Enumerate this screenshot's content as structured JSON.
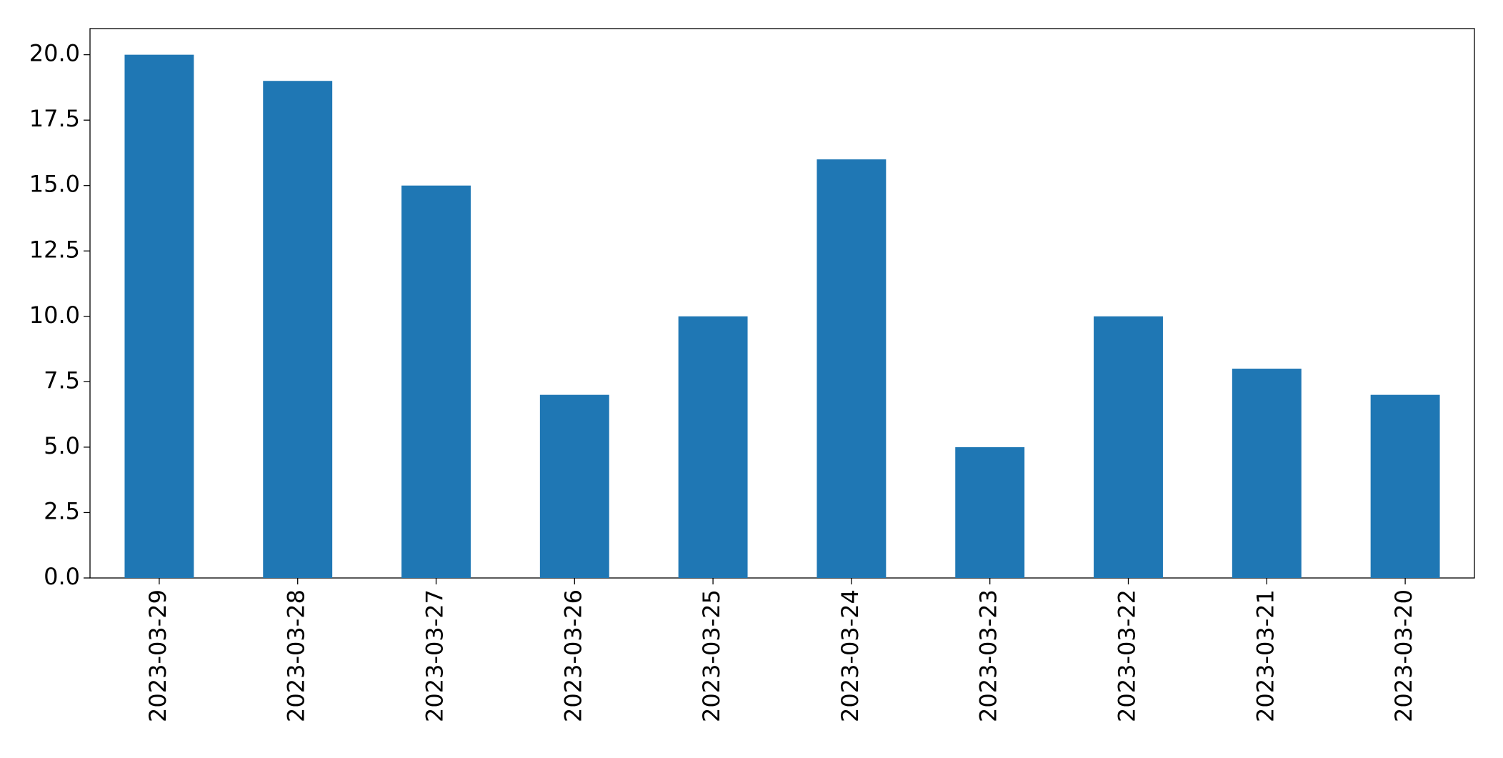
{
  "chart_data": {
    "type": "bar",
    "categories": [
      "2023-03-29",
      "2023-03-28",
      "2023-03-27",
      "2023-03-26",
      "2023-03-25",
      "2023-03-24",
      "2023-03-23",
      "2023-03-22",
      "2023-03-21",
      "2023-03-20"
    ],
    "values": [
      20,
      19,
      15,
      7,
      10,
      16,
      5,
      10,
      8,
      7
    ],
    "color": "#1f77b4",
    "ylim": [
      0,
      21
    ],
    "yticks": [
      {
        "value": 0,
        "label": "0.0"
      },
      {
        "value": 2.5,
        "label": "2.5"
      },
      {
        "value": 5,
        "label": "5.0"
      },
      {
        "value": 7.5,
        "label": "7.5"
      },
      {
        "value": 10,
        "label": "10.0"
      },
      {
        "value": 12.5,
        "label": "12.5"
      },
      {
        "value": 15,
        "label": "15.0"
      },
      {
        "value": 17.5,
        "label": "17.5"
      },
      {
        "value": 20,
        "label": "20.0"
      }
    ],
    "grid": false
  }
}
